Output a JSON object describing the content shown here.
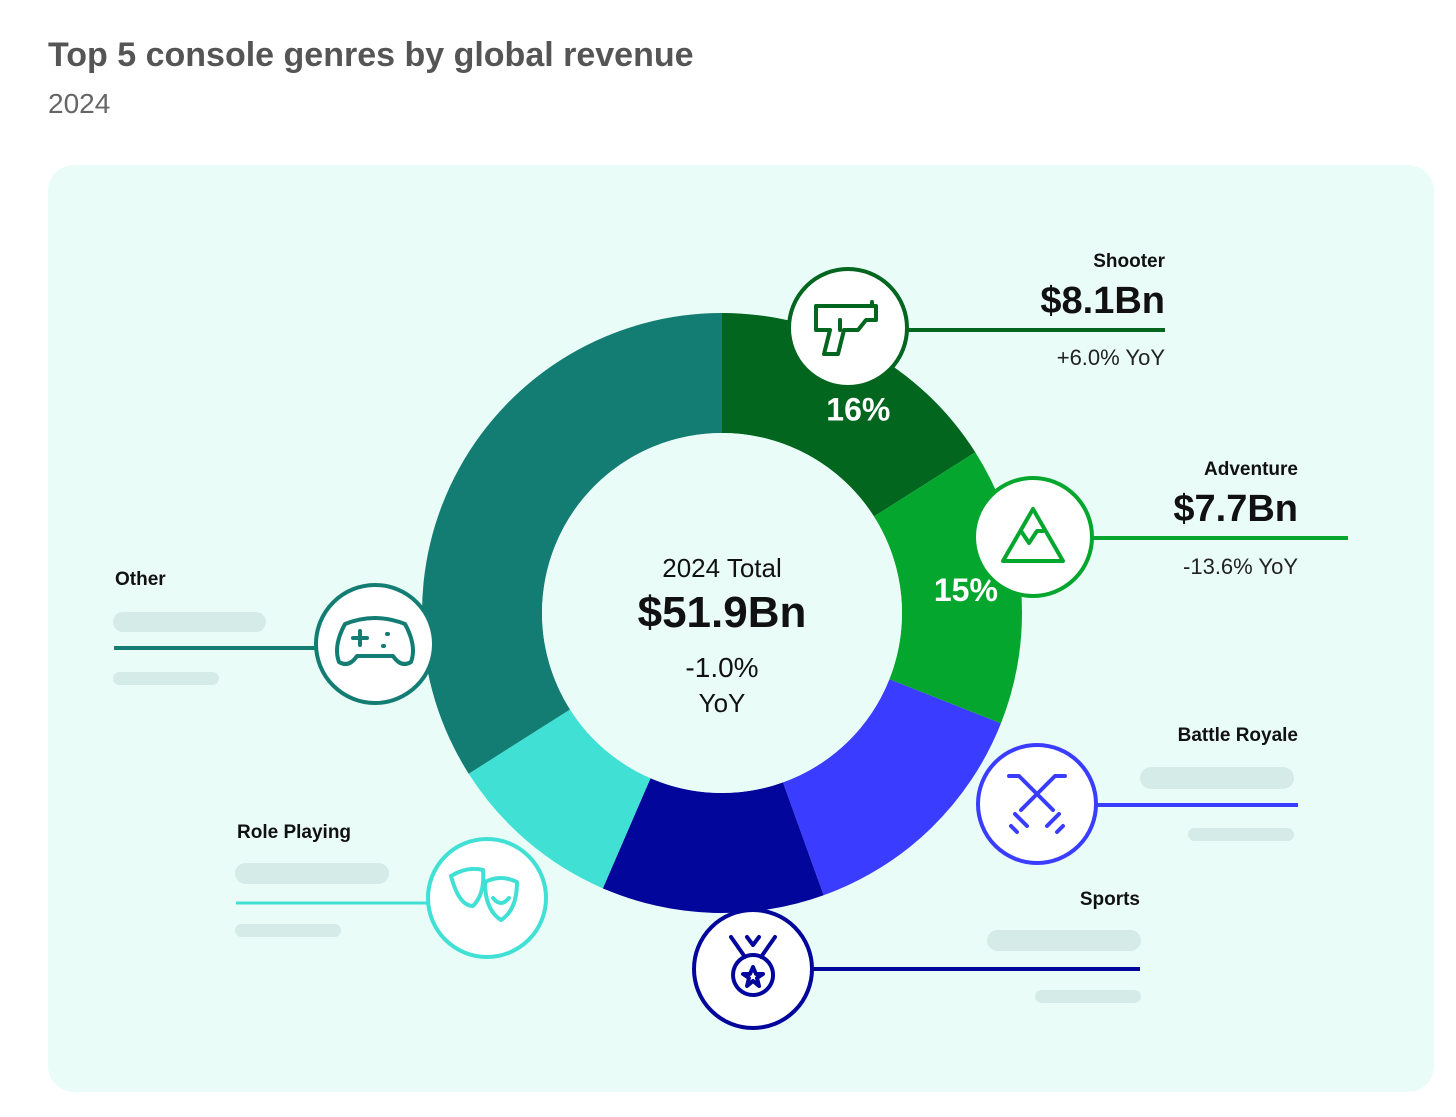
{
  "header": {
    "title": "Top 5 console genres by global revenue",
    "subtitle": "2024"
  },
  "center": {
    "label": "2024 Total",
    "value": "$51.9Bn",
    "yoy": "-1.0%",
    "yoy_unit": "YoY"
  },
  "chart_data": {
    "type": "pie",
    "title": "Top 5 console genres by global revenue",
    "subtitle": "2024",
    "donut": true,
    "total": "$51.9Bn",
    "slices": [
      {
        "name": "Shooter",
        "share": 16,
        "share_label": "16%",
        "value": "$8.1Bn",
        "yoy": "+6.0% YoY",
        "color": "#02661f",
        "icon": "pistol-icon"
      },
      {
        "name": "Adventure",
        "share": 15,
        "share_label": "15%",
        "value": "$7.7Bn",
        "yoy": "-13.6% YoY",
        "color": "#05a62e",
        "icon": "mountain-icon"
      },
      {
        "name": "Battle Royale",
        "share": 13.5,
        "color": "#3a3dff",
        "icon": "crossed-swords-icon"
      },
      {
        "name": "Sports",
        "share": 12,
        "color": "#03069a",
        "icon": "medal-icon"
      },
      {
        "name": "Role Playing",
        "share": 9.5,
        "color": "#41e0d4",
        "icon": "theater-masks-icon"
      },
      {
        "name": "Other",
        "share": 34,
        "color": "#137d73",
        "icon": "gamepad-icon"
      }
    ]
  }
}
